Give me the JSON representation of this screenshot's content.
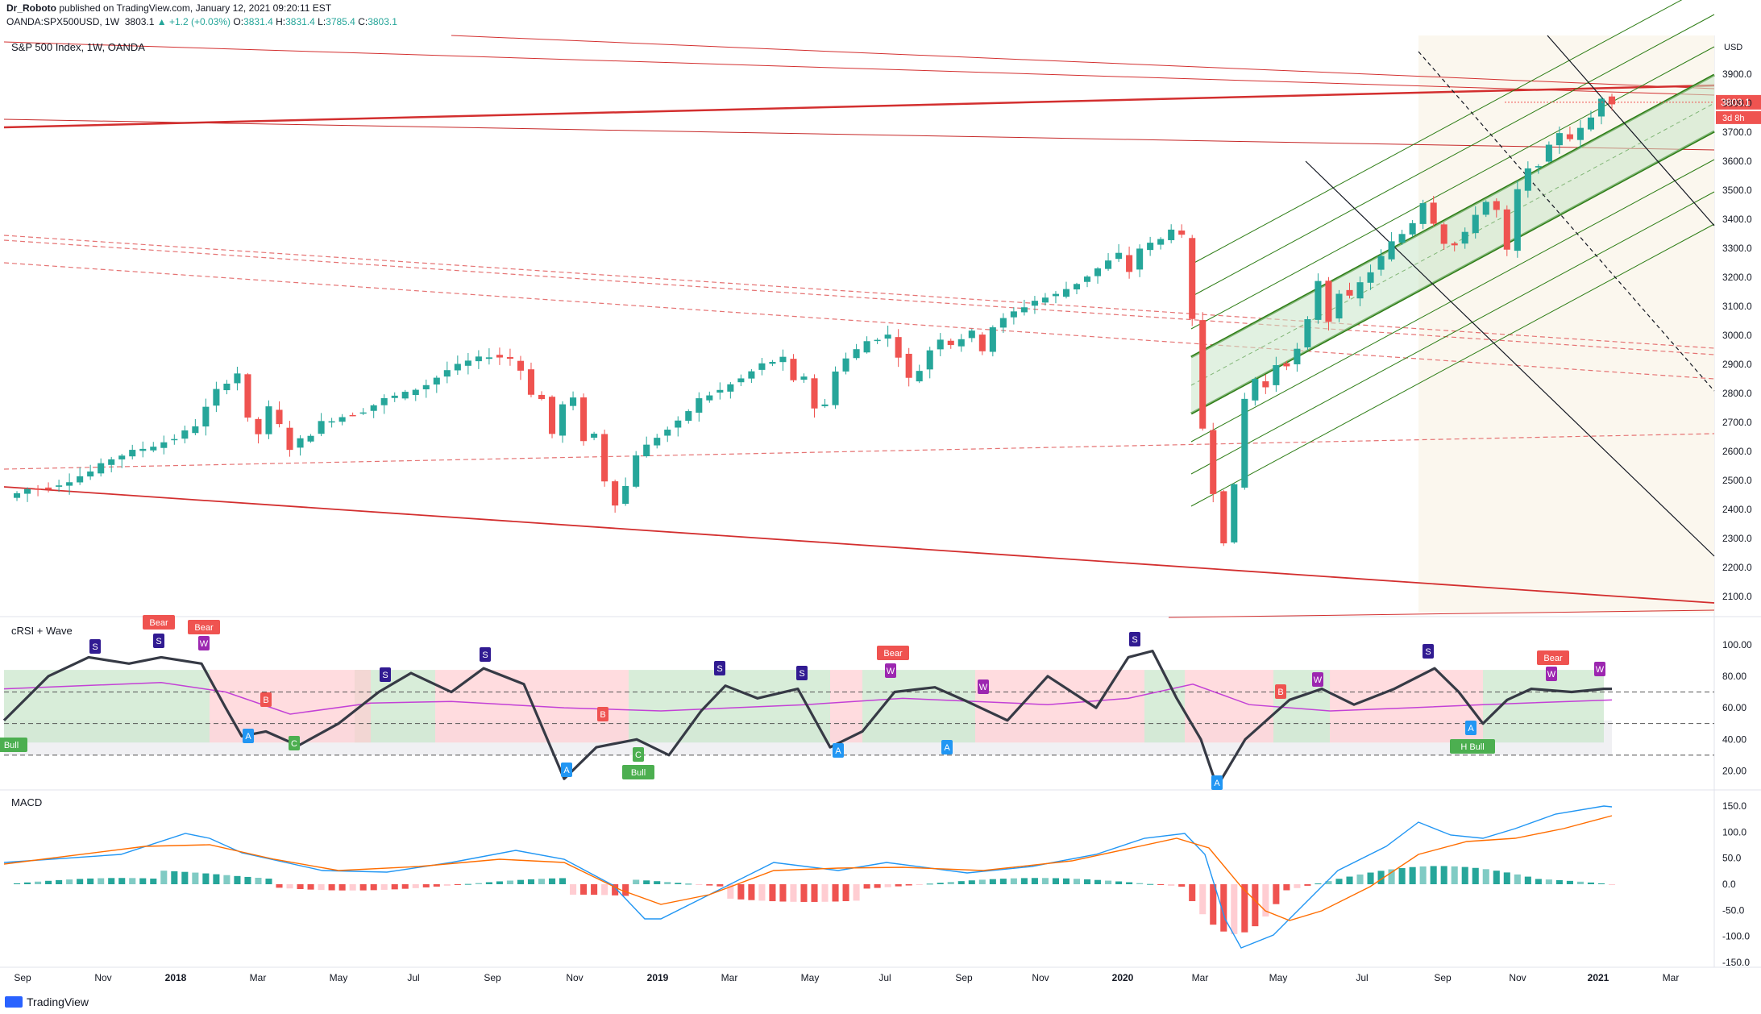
{
  "header": {
    "author": "Dr_Roboto",
    "published": "published on TradingView.com, January 12, 2021 09:20:11 EST",
    "symbol": "OANDA:SPX500USD, 1W",
    "last": "3803.1",
    "change": "▲ +1.2 (+0.03%)",
    "o_label": "O:",
    "o": "3831.4",
    "h_label": "H:",
    "h": "3831.4",
    "l_label": "L:",
    "l": "3785.4",
    "c_label": "C:",
    "c": "3803.1"
  },
  "footer": {
    "brand": "TradingView"
  },
  "colors": {
    "bull": "#26a69a",
    "bear": "#ef5350",
    "channel_green": "#2e7d16",
    "trend_red": "#d32f2f",
    "macd_line": "#2196f3",
    "signal_line": "#ff6d00",
    "crsi_line": "#363a45",
    "wave_line": "#c341d6"
  },
  "chart_data": [
    {
      "type": "candlestick",
      "title": "S&P 500 Index, 1W, OANDA",
      "currency": "USD",
      "current_price": "3803.1",
      "countdown": "3d 8h",
      "ylim": [
        2050,
        4000
      ],
      "y_ticks": [
        2100,
        2200,
        2300,
        2400,
        2500,
        2600,
        2700,
        2800,
        2900,
        3000,
        3100,
        3200,
        3300,
        3400,
        3500,
        3600,
        3700,
        3800,
        3900
      ],
      "x_ticks": [
        "Sep",
        "Nov",
        "2018",
        "Mar",
        "May",
        "Jul",
        "Sep",
        "Nov",
        "2019",
        "Mar",
        "May",
        "Jul",
        "Sep",
        "Nov",
        "2020",
        "Mar",
        "May",
        "Jul",
        "Sep",
        "Nov",
        "2021",
        "Mar"
      ],
      "close_path": [
        [
          0,
          2440
        ],
        [
          2,
          2470
        ],
        [
          4,
          2475
        ],
        [
          6,
          2500
        ],
        [
          8,
          2530
        ],
        [
          10,
          2575
        ],
        [
          12,
          2600
        ],
        [
          14,
          2620
        ],
        [
          16,
          2645
        ],
        [
          18,
          2690
        ],
        [
          19,
          2750
        ],
        [
          20,
          2810
        ],
        [
          22,
          2870
        ],
        [
          23,
          2710
        ],
        [
          24,
          2660
        ],
        [
          25,
          2750
        ],
        [
          26,
          2690
        ],
        [
          27,
          2610
        ],
        [
          28,
          2640
        ],
        [
          29,
          2660
        ],
        [
          30,
          2700
        ],
        [
          32,
          2720
        ],
        [
          34,
          2740
        ],
        [
          36,
          2780
        ],
        [
          38,
          2800
        ],
        [
          40,
          2830
        ],
        [
          42,
          2880
        ],
        [
          44,
          2910
        ],
        [
          46,
          2930
        ],
        [
          48,
          2920
        ],
        [
          49,
          2880
        ],
        [
          50,
          2800
        ],
        [
          51,
          2780
        ],
        [
          52,
          2660
        ],
        [
          53,
          2760
        ],
        [
          54,
          2780
        ],
        [
          55,
          2640
        ],
        [
          56,
          2660
        ],
        [
          57,
          2500
        ],
        [
          58,
          2420
        ],
        [
          59,
          2480
        ],
        [
          60,
          2590
        ],
        [
          62,
          2650
        ],
        [
          64,
          2700
        ],
        [
          66,
          2780
        ],
        [
          68,
          2810
        ],
        [
          70,
          2850
        ],
        [
          72,
          2900
        ],
        [
          74,
          2920
        ],
        [
          75,
          2840
        ],
        [
          76,
          2860
        ],
        [
          77,
          2750
        ],
        [
          78,
          2760
        ],
        [
          79,
          2880
        ],
        [
          80,
          2920
        ],
        [
          82,
          2980
        ],
        [
          84,
          3000
        ],
        [
          85,
          2930
        ],
        [
          86,
          2850
        ],
        [
          87,
          2880
        ],
        [
          88,
          2950
        ],
        [
          89,
          2990
        ],
        [
          90,
          2970
        ],
        [
          92,
          3010
        ],
        [
          93,
          2950
        ],
        [
          94,
          3030
        ],
        [
          96,
          3080
        ],
        [
          98,
          3120
        ],
        [
          100,
          3140
        ],
        [
          102,
          3180
        ],
        [
          104,
          3230
        ],
        [
          106,
          3280
        ],
        [
          107,
          3220
        ],
        [
          108,
          3300
        ],
        [
          110,
          3330
        ],
        [
          111,
          3370
        ],
        [
          112,
          3340
        ],
        [
          113,
          3050
        ],
        [
          114,
          2680
        ],
        [
          115,
          2460
        ],
        [
          116,
          2290
        ],
        [
          117,
          2480
        ],
        [
          118,
          2780
        ],
        [
          119,
          2850
        ],
        [
          120,
          2820
        ],
        [
          121,
          2900
        ],
        [
          122,
          2900
        ],
        [
          123,
          2950
        ],
        [
          124,
          3050
        ],
        [
          125,
          3190
        ],
        [
          126,
          3050
        ],
        [
          127,
          3150
        ],
        [
          128,
          3130
        ],
        [
          129,
          3180
        ],
        [
          130,
          3220
        ],
        [
          131,
          3270
        ],
        [
          132,
          3320
        ],
        [
          133,
          3350
        ],
        [
          134,
          3390
        ],
        [
          135,
          3460
        ],
        [
          136,
          3390
        ],
        [
          137,
          3320
        ],
        [
          138,
          3310
        ],
        [
          139,
          3350
        ],
        [
          140,
          3420
        ],
        [
          141,
          3460
        ],
        [
          142,
          3430
        ],
        [
          143,
          3290
        ],
        [
          144,
          3500
        ],
        [
          145,
          3570
        ],
        [
          146,
          3590
        ],
        [
          147,
          3650
        ],
        [
          148,
          3700
        ],
        [
          149,
          3680
        ],
        [
          150,
          3710
        ],
        [
          151,
          3750
        ],
        [
          152,
          3820
        ],
        [
          153,
          3803
        ]
      ]
    },
    {
      "type": "line",
      "title": "cRSI + Wave",
      "ylim": [
        10,
        105
      ],
      "y_ticks": [
        "100.00",
        "80.00",
        "60.00",
        "40.00",
        "20.00"
      ],
      "levels": [
        70,
        50,
        30
      ],
      "labels": [
        "Bear",
        "Bear",
        "Bear",
        "Bull",
        "H Bull",
        "A",
        "A",
        "A",
        "A",
        "A",
        "C",
        "C",
        "B",
        "B",
        "B",
        "S",
        "W"
      ]
    },
    {
      "type": "line",
      "title": "MACD",
      "ylim": [
        -160,
        165
      ],
      "y_ticks": [
        "150.0",
        "100.0",
        "50.0",
        "0.0",
        "-50.0",
        "-100.0",
        "-150.0"
      ],
      "series": [
        {
          "name": "",
          "values": []
        },
        {
          "name": "",
          "values": []
        }
      ]
    }
  ]
}
